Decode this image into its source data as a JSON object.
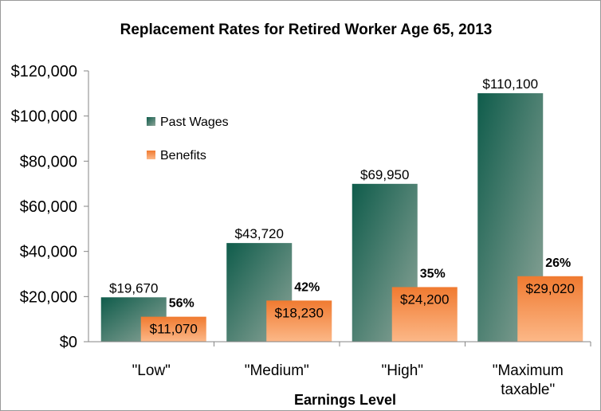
{
  "chart_data": {
    "type": "bar",
    "title": "Replacement Rates for Retired Worker Age 65, 2013",
    "xlabel": "Earnings Level",
    "ylabel": "",
    "ylim": [
      0,
      120000
    ],
    "yticks": [
      0,
      20000,
      40000,
      60000,
      80000,
      100000,
      120000
    ],
    "ytick_labels": [
      "$0",
      "$20,000",
      "$40,000",
      "$60,000",
      "$80,000",
      "$100,000",
      "$120,000"
    ],
    "categories": [
      [
        "\"Low\""
      ],
      [
        "\"Medium\""
      ],
      [
        "\"High\""
      ],
      [
        "\"Maximum",
        "taxable\""
      ]
    ],
    "series": [
      {
        "name": "Past Wages",
        "color": "#0f5c4b",
        "values": [
          19670,
          43720,
          69950,
          110100
        ],
        "labels": [
          "$19,670",
          "$43,720",
          "$69,950",
          "$110,100"
        ]
      },
      {
        "name": "Benefits",
        "color": "#f07a30",
        "values": [
          11070,
          18230,
          24200,
          29020
        ],
        "labels": [
          "$11,070",
          "$18,230",
          "$24,200",
          "$29,020"
        ]
      }
    ],
    "replacement_rates": [
      "56%",
      "42%",
      "35%",
      "26%"
    ],
    "legend_position": "upper-left-inside",
    "grid": false
  }
}
